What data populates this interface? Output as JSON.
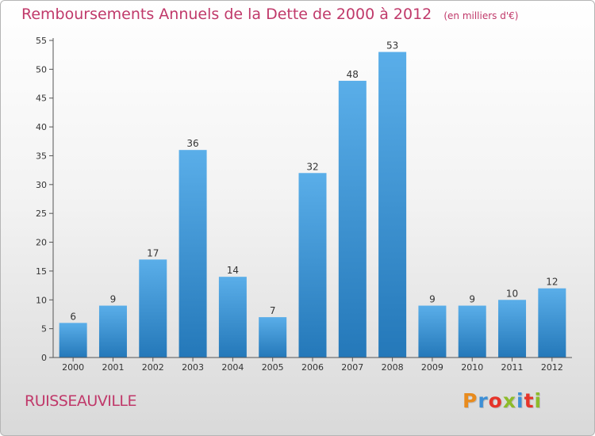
{
  "chart_data": {
    "type": "bar",
    "title": "Remboursements Annuels de la Dette de 2000 à 2012",
    "subtitle": "(en milliers d'€)",
    "categories": [
      "2000",
      "2001",
      "2002",
      "2003",
      "2004",
      "2005",
      "2006",
      "2007",
      "2008",
      "2009",
      "2010",
      "2011",
      "2012"
    ],
    "values": [
      6,
      9,
      17,
      36,
      14,
      7,
      32,
      48,
      53,
      9,
      9,
      10,
      12
    ],
    "ylim": [
      0,
      55
    ],
    "yticks": [
      0,
      5,
      10,
      15,
      20,
      25,
      30,
      35,
      40,
      45,
      50,
      55
    ],
    "xlabel": "",
    "ylabel": "",
    "grid": false,
    "bar_color_top": "#5aaee9",
    "bar_color_bottom": "#2478b9"
  },
  "location": {
    "name": "RUISSEAUVILLE"
  },
  "branding": {
    "logo_text": "Proxiti",
    "logo_colors": [
      "#e88b1e",
      "#3d8fd6",
      "#e6342a",
      "#8dbb2a",
      "#3d8fd6",
      "#e6342a",
      "#8dbb2a"
    ]
  },
  "colors": {
    "accent": "#c0396a"
  }
}
